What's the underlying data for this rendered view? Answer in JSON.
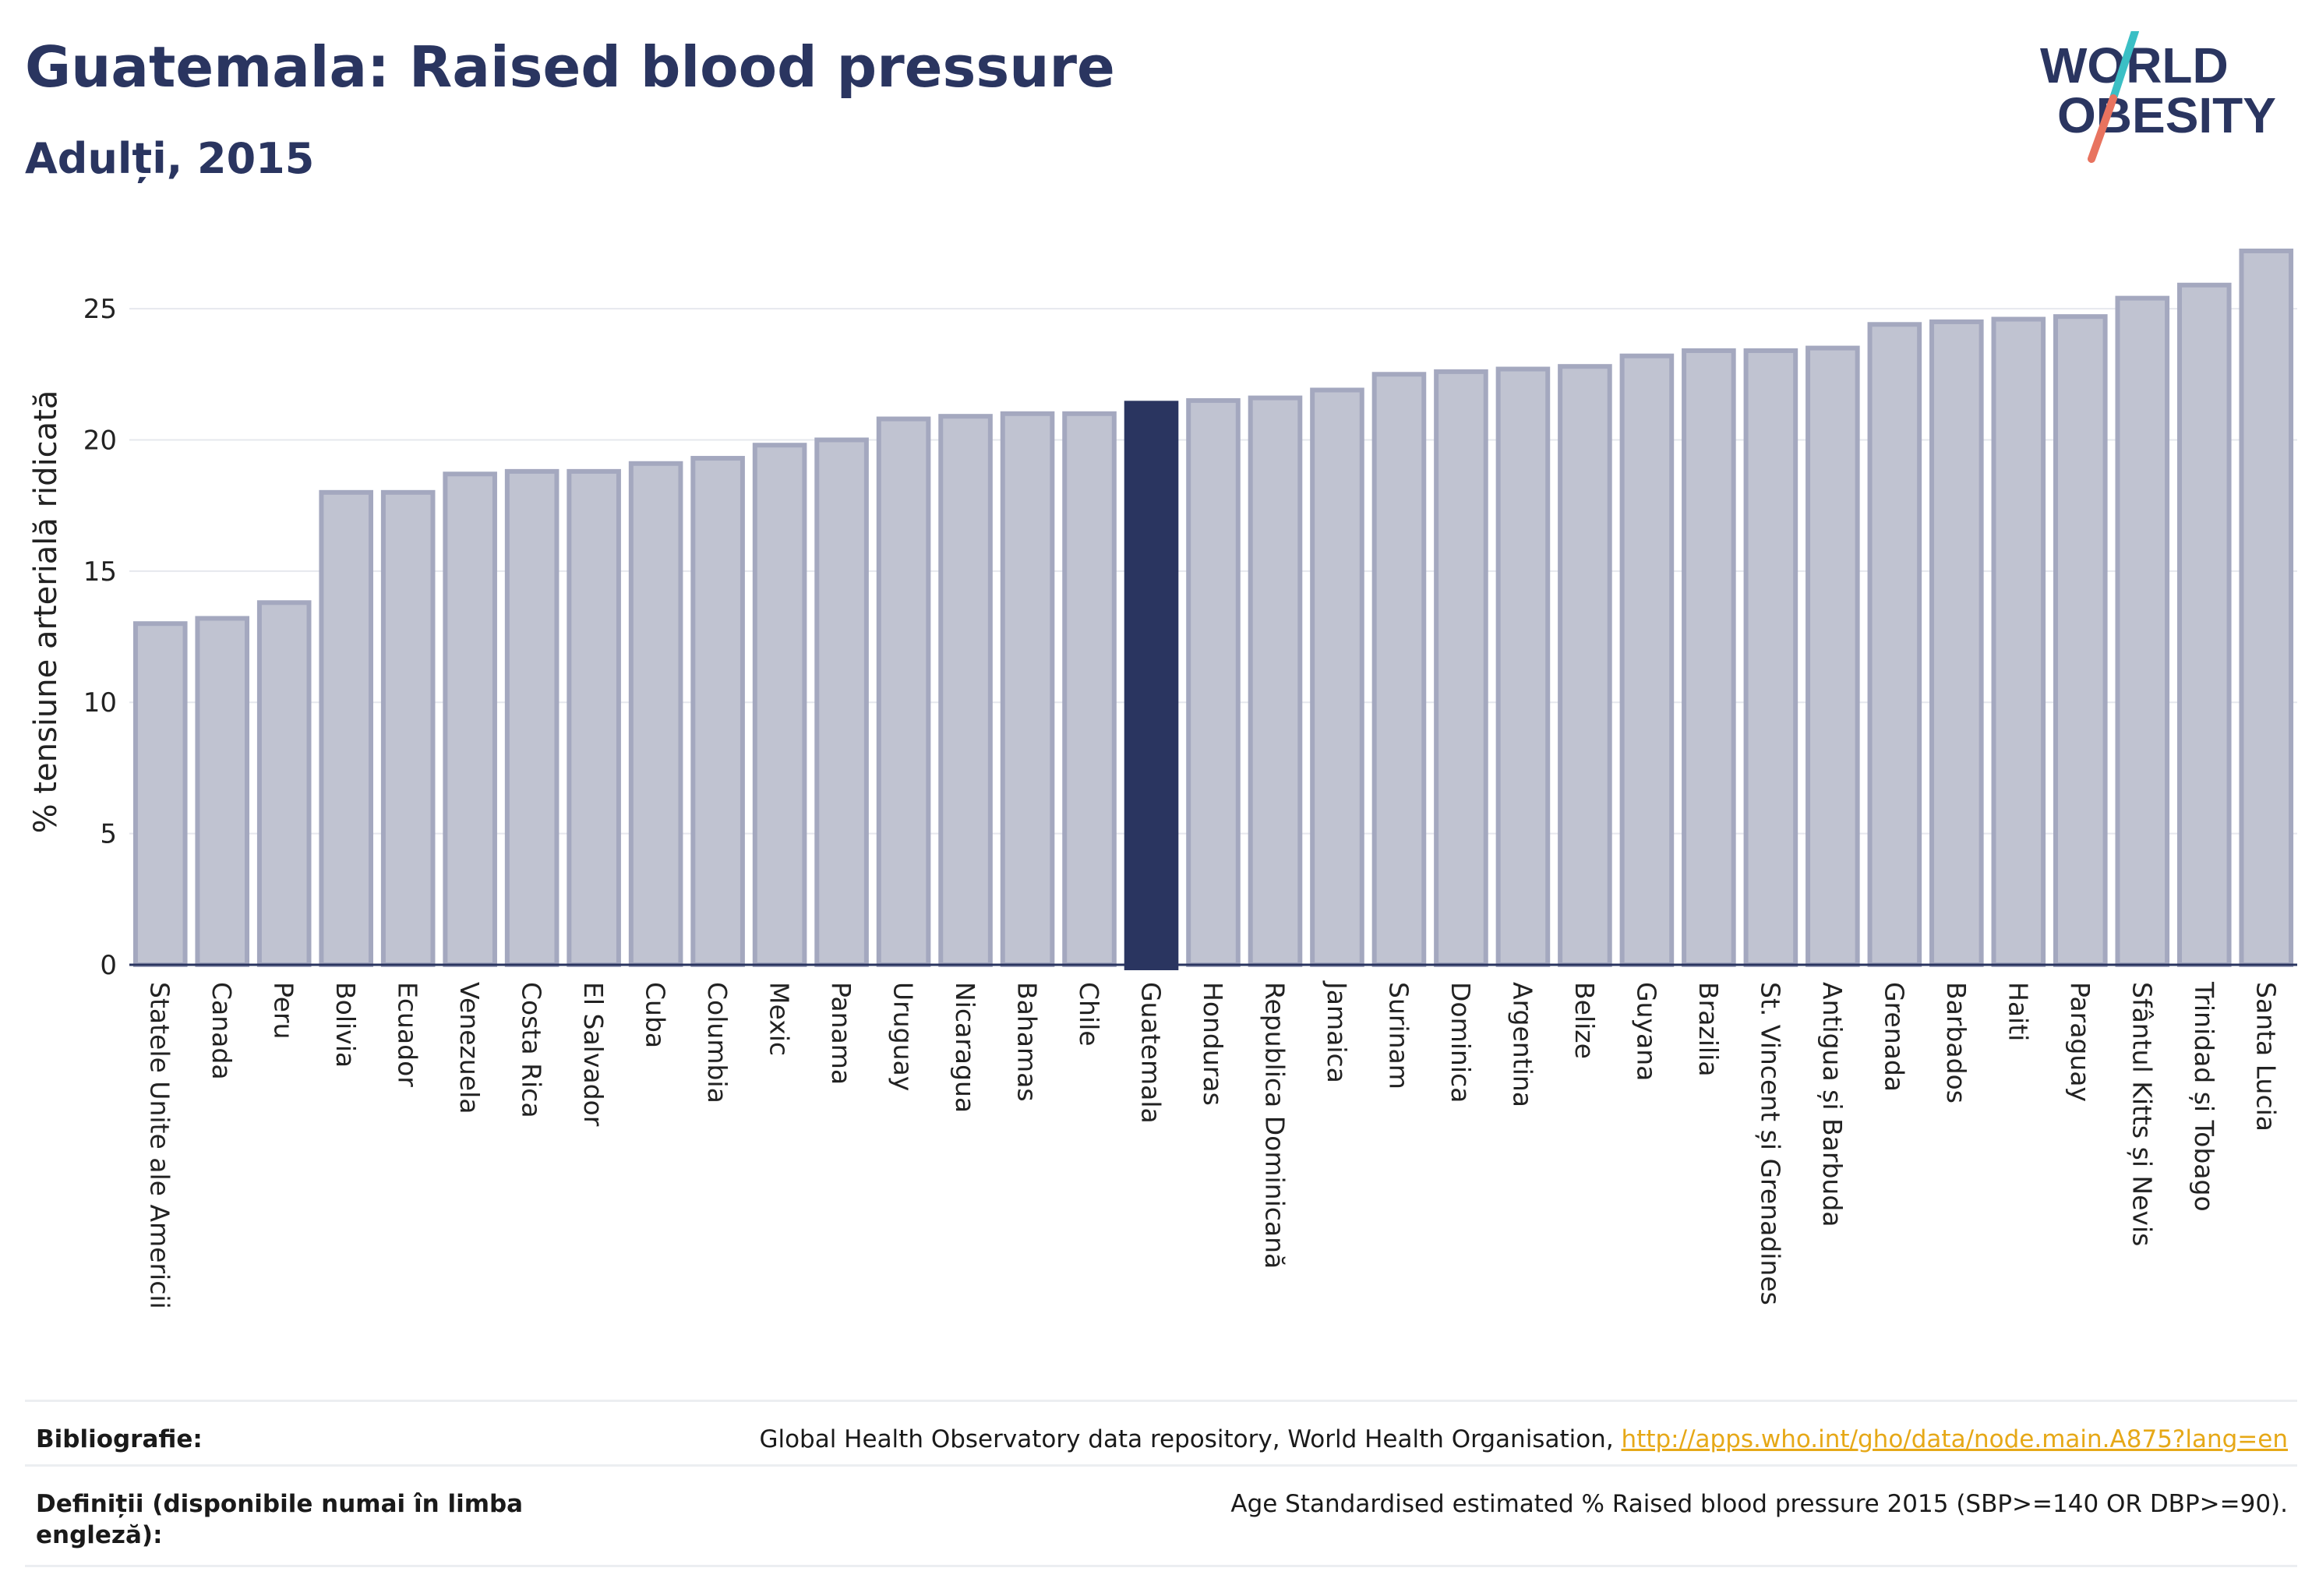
{
  "header": {
    "title": "Guatemala: Raised blood pressure",
    "subtitle": "Adulți, 2015"
  },
  "logo": {
    "line1": "WORLD",
    "line2": "OBESITY",
    "colors": {
      "text": "#2a3560",
      "slash_teal": "#3bbfc5",
      "slash_coral": "#e8735f"
    }
  },
  "chart_data": {
    "type": "bar",
    "ylabel": "% tensiune arterială ridicată",
    "ylim": [
      0,
      27.2
    ],
    "yticks": [
      0,
      5,
      10,
      15,
      20,
      25
    ],
    "grid": true,
    "highlight": "Guatemala",
    "colors": {
      "bar": "#c0c3d1",
      "bar_edge": "#a4a8bf",
      "highlight": "#2a3560"
    },
    "categories": [
      "Statele Unite ale Americii",
      "Canada",
      "Peru",
      "Bolivia",
      "Ecuador",
      "Venezuela",
      "Costa Rica",
      "El Salvador",
      "Cuba",
      "Columbia",
      "Mexic",
      "Panama",
      "Uruguay",
      "Nicaragua",
      "Bahamas",
      "Chile",
      "Guatemala",
      "Honduras",
      "Republica Dominicană",
      "Jamaica",
      "Surinam",
      "Dominica",
      "Argentina",
      "Belize",
      "Guyana",
      "Brazilia",
      "St. Vincent și Grenadines",
      "Antigua și Barbuda",
      "Grenada",
      "Barbados",
      "Haiti",
      "Paraguay",
      "Sfântul Kitts și Nevis",
      "Trinidad și Tobago",
      "Santa Lucia"
    ],
    "values": [
      13.0,
      13.2,
      13.8,
      18.0,
      18.0,
      18.7,
      18.8,
      18.8,
      19.1,
      19.3,
      19.8,
      20.0,
      20.8,
      20.9,
      21.0,
      21.0,
      21.4,
      21.5,
      21.6,
      21.9,
      22.5,
      22.6,
      22.7,
      22.8,
      23.2,
      23.4,
      23.4,
      23.5,
      24.4,
      24.5,
      24.6,
      24.7,
      25.4,
      25.9,
      27.2
    ]
  },
  "footer": {
    "bibliography_label": "Bibliografie:",
    "bibliography_text": "Global Health Observatory data repository, World Health Organisation,",
    "bibliography_link": "http://apps.who.int/gho/data/node.main.A875?lang=en",
    "definitions_label": "Definiții (disponibile numai în limba engleză):",
    "definitions_text": "Age Standardised estimated % Raised blood pressure 2015 (SBP>=140 OR DBP>=90)."
  }
}
